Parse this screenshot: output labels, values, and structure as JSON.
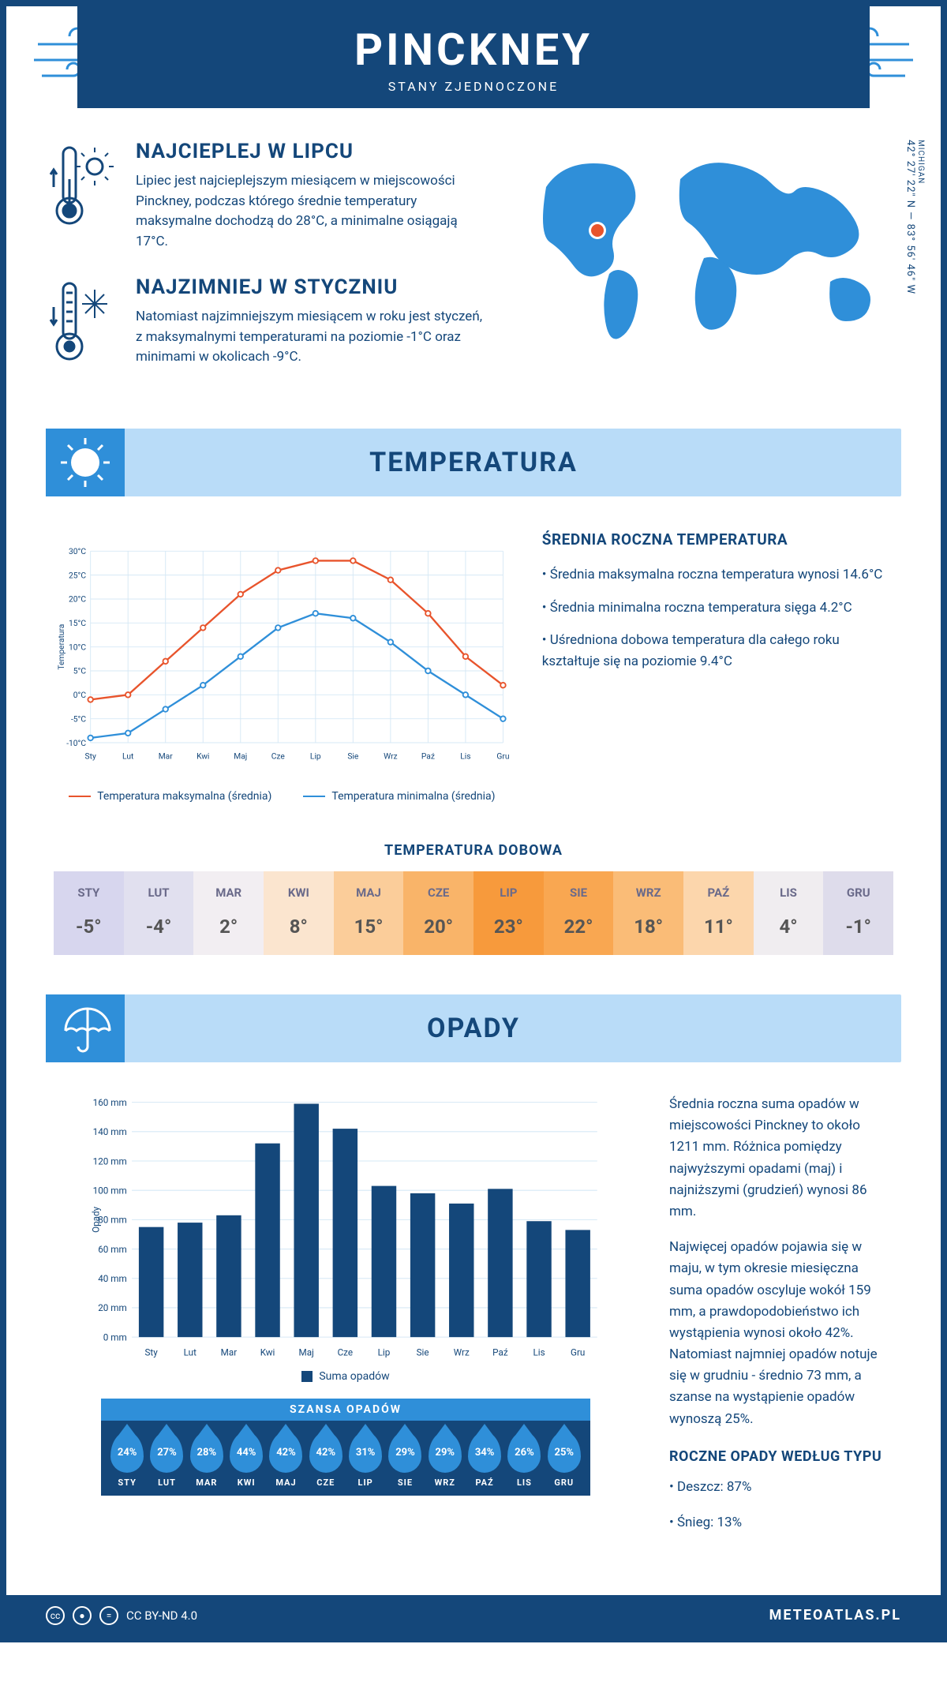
{
  "brand_color": "#14477a",
  "accent_color": "#2f8fd9",
  "light_blue": "#b9dcf8",
  "hot_color": "#e8542c",
  "header": {
    "title": "PINCKNEY",
    "subtitle": "STANY ZJEDNOCZONE"
  },
  "coords": {
    "state": "MICHIGAN",
    "loc": "42° 27' 22\" N — 83° 56' 46\" W"
  },
  "warmest": {
    "title": "NAJCIEPLEJ W LIPCU",
    "text": "Lipiec jest najcieplejszym miesiącem w miejscowości Pinckney, podczas którego średnie temperatury maksymalne dochodzą do 28°C, a minimalne osiągają 17°C."
  },
  "coldest": {
    "title": "NAJZIMNIEJ W STYCZNIU",
    "text": "Natomiast najzimniejszym miesiącem w roku jest styczeń, z maksymalnymi temperaturami na poziomie -1°C oraz minimami w okolicach -9°C."
  },
  "temp_section_title": "TEMPERATURA",
  "prec_section_title": "OPADY",
  "temp_chart": {
    "type": "line",
    "months": [
      "Sty",
      "Lut",
      "Mar",
      "Kwi",
      "Maj",
      "Cze",
      "Lip",
      "Sie",
      "Wrz",
      "Paź",
      "Lis",
      "Gru"
    ],
    "max_series": [
      -1,
      0,
      7,
      14,
      21,
      26,
      28,
      28,
      24,
      17,
      8,
      2
    ],
    "min_series": [
      -9,
      -8,
      -3,
      2,
      8,
      14,
      17,
      16,
      11,
      5,
      0,
      -5
    ],
    "max_color": "#e8542c",
    "min_color": "#2f8fd9",
    "ylim": [
      -10,
      30
    ],
    "ytick_step": 5,
    "y_unit": "°C",
    "y_label": "Temperatura",
    "grid_color": "#d6e8f5",
    "legend_max": "Temperatura maksymalna (średnia)",
    "legend_min": "Temperatura minimalna (średnia)"
  },
  "temp_annual": {
    "title": "ŚREDNIA ROCZNA TEMPERATURA",
    "b1": "• Średnia maksymalna roczna temperatura wynosi 14.6°C",
    "b2": "• Średnia minimalna roczna temperatura sięga 4.2°C",
    "b3": "• Uśredniona dobowa temperatura dla całego roku kształtuje się na poziomie 9.4°C"
  },
  "daily_temp": {
    "title": "TEMPERATURA DOBOWA",
    "months": [
      "STY",
      "LUT",
      "MAR",
      "KWI",
      "MAJ",
      "CZE",
      "LIP",
      "SIE",
      "WRZ",
      "PAŹ",
      "LIS",
      "GRU"
    ],
    "values": [
      "-5°",
      "-4°",
      "2°",
      "8°",
      "15°",
      "20°",
      "23°",
      "22°",
      "18°",
      "11°",
      "4°",
      "-1°"
    ],
    "colors": [
      "#d7d6ee",
      "#e1e0ef",
      "#f2eef2",
      "#fbe5cf",
      "#fbcd9a",
      "#f9b469",
      "#f79a3c",
      "#f9a751",
      "#fabc77",
      "#fcd6ac",
      "#f0edf0",
      "#dedceb"
    ]
  },
  "prec_chart": {
    "type": "bar",
    "months": [
      "Sty",
      "Lut",
      "Mar",
      "Kwi",
      "Maj",
      "Cze",
      "Lip",
      "Sie",
      "Wrz",
      "Paź",
      "Lis",
      "Gru"
    ],
    "values": [
      75,
      78,
      83,
      132,
      159,
      142,
      103,
      98,
      91,
      101,
      79,
      73
    ],
    "bar_color": "#14477a",
    "ylim": [
      0,
      160
    ],
    "ytick_step": 20,
    "y_unit": " mm",
    "y_label": "Opady",
    "grid_color": "#d6e8f5",
    "legend": "Suma opadów"
  },
  "chance_title": "SZANSA OPADÓW",
  "chance": {
    "months": [
      "STY",
      "LUT",
      "MAR",
      "KWI",
      "MAJ",
      "CZE",
      "LIP",
      "SIE",
      "WRZ",
      "PAŹ",
      "LIS",
      "GRU"
    ],
    "values": [
      "24%",
      "27%",
      "28%",
      "44%",
      "42%",
      "42%",
      "31%",
      "29%",
      "29%",
      "34%",
      "26%",
      "25%"
    ]
  },
  "prec_text": {
    "p1": "Średnia roczna suma opadów w miejscowości Pinckney to około 1211 mm. Różnica pomiędzy najwyższymi opadami (maj) i najniższymi (grudzień) wynosi 86 mm.",
    "p2": "Najwięcej opadów pojawia się w maju, w tym okresie miesięczna suma opadów oscyluje wokół 159 mm, a prawdopodobieństwo ich wystąpienia wynosi około 42%. Natomiast najmniej opadów notuje się w grudniu - średnio 73 mm, a szanse na wystąpienie opadów wynoszą 25%.",
    "type_title": "ROCZNE OPADY WEDŁUG TYPU",
    "rain": "• Deszcz: 87%",
    "snow": "• Śnieg: 13%"
  },
  "footer": {
    "license": "CC BY-ND 4.0",
    "site": "METEOATLAS.PL"
  }
}
